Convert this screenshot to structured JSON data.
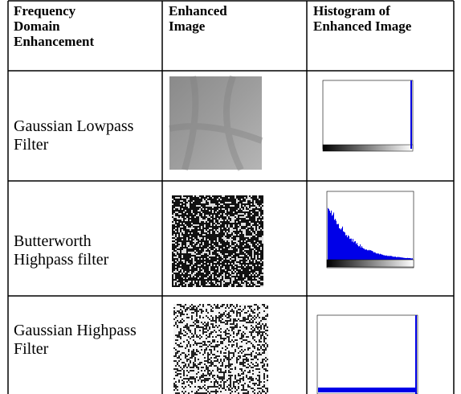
{
  "table": {
    "header": [
      "Frequency Domain Enhancement",
      "Enhanced Image",
      "Histogram of Enhanced Image"
    ],
    "rows": [
      [
        "Gaussian Lowpass Filter"
      ],
      [
        "Butterworth Highpass filter"
      ],
      [
        "Gaussian Highpass Filter"
      ]
    ]
  }
}
